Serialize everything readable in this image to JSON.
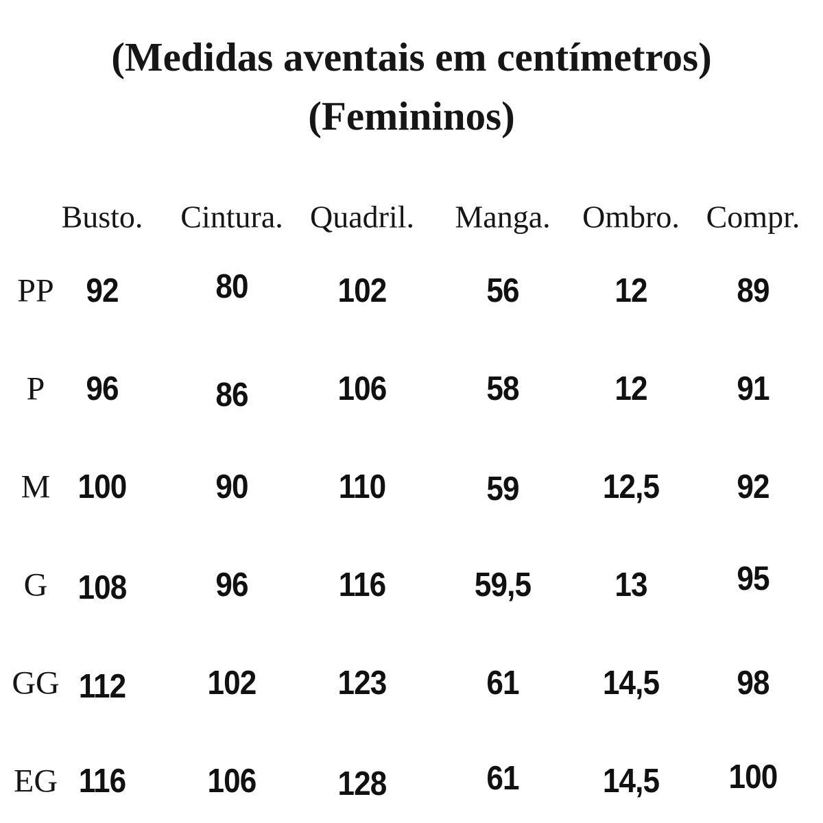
{
  "title": {
    "line1": "(Medidas aventais em centímetros)",
    "line2": "(Femininos)"
  },
  "table": {
    "columns": [
      "Busto.",
      "Cintura.",
      "Quadril.",
      "Manga.",
      "Ombro.",
      "Compr."
    ],
    "rows": [
      {
        "size": "PP",
        "values": [
          "92",
          "80",
          "102",
          "56",
          "12",
          "89"
        ]
      },
      {
        "size": "P",
        "values": [
          "96",
          "86",
          "106",
          "58",
          "12",
          "91"
        ]
      },
      {
        "size": "M",
        "values": [
          "100",
          "90",
          "110",
          "59",
          "12,5",
          "92"
        ]
      },
      {
        "size": "G",
        "values": [
          "108",
          "96",
          "116",
          "59,5",
          "13",
          "95"
        ]
      },
      {
        "size": "GG",
        "values": [
          "112",
          "102",
          "123",
          "61",
          "14,5",
          "98"
        ]
      },
      {
        "size": "EG",
        "values": [
          "116",
          "106",
          "128",
          "61",
          "14,5",
          "100"
        ]
      }
    ],
    "unit": "centímetros"
  },
  "colors": {
    "background": "#ffffff",
    "text": "#141414"
  }
}
